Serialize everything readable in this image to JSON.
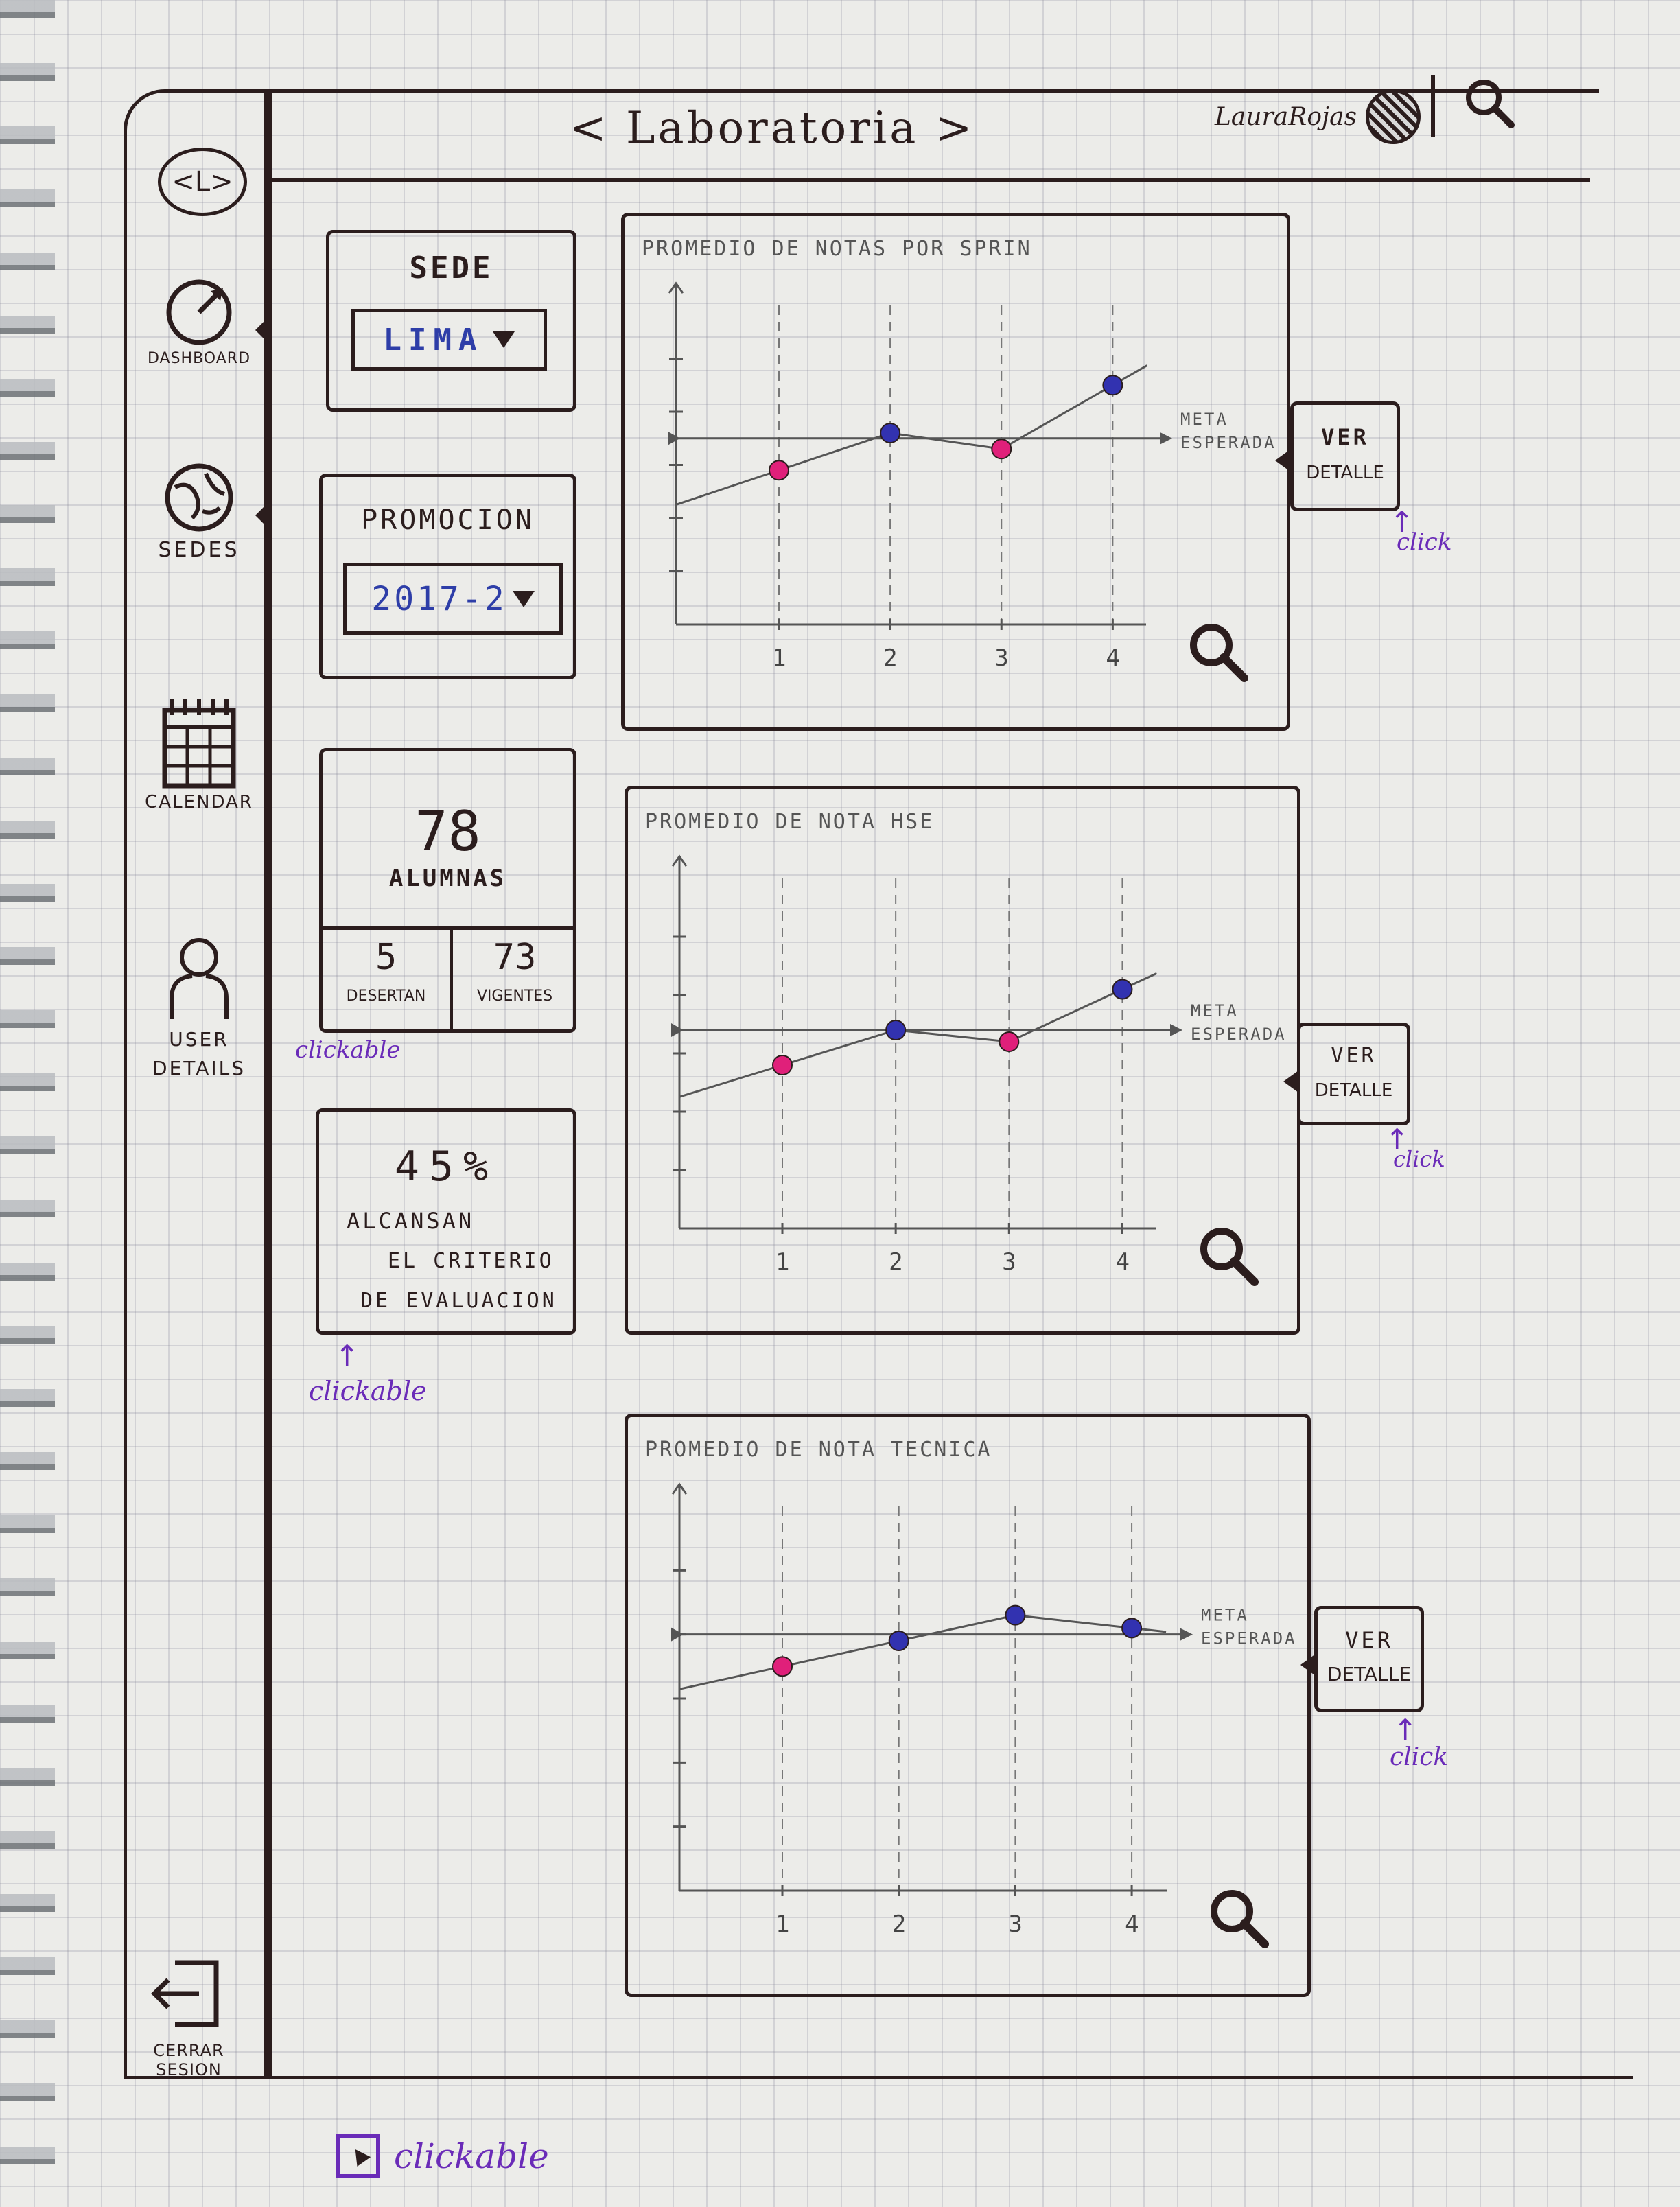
{
  "header": {
    "app_title": "< Laboratoria >",
    "user_name": "LauraRojas"
  },
  "sidebar": {
    "logo_text": "<L>",
    "items": [
      {
        "label": "DASHBOARD"
      },
      {
        "label": "SEDES"
      },
      {
        "label": "CALENDAR"
      },
      {
        "label": "USER DETAILS"
      }
    ],
    "logout_label": "CERRAR SESION"
  },
  "filters": {
    "sede": {
      "title": "SEDE",
      "value": "LIMA"
    },
    "promocion": {
      "title": "PROMOCION",
      "value": "2017-2"
    }
  },
  "stats": {
    "alumnas": {
      "count": "78",
      "label": "ALUMNAS"
    },
    "desertan": {
      "count": "5",
      "label": "DESERTAN"
    },
    "vigentes": {
      "count": "73",
      "label": "VIGENTES"
    },
    "criterio": {
      "percent": "45%",
      "line1": "ALCANSAN",
      "line2": "EL CRITERIO",
      "line3": "DE EVALUACION"
    }
  },
  "annotations": {
    "clickable": "clickable",
    "click": "click",
    "legend_label": "clickable"
  },
  "detail_button_label": [
    "VER",
    "DETALLE"
  ],
  "colors": {
    "ink": "#2b1d1d",
    "pink": "#e0207a",
    "blue": "#3232b0",
    "purple": "#6a2bb8"
  },
  "chart_data": [
    {
      "type": "line",
      "title": "PROMEDIO DE NOTAS POR SPRIN",
      "x": [
        1,
        2,
        3,
        4
      ],
      "values": [
        2.9,
        3.6,
        3.3,
        4.5
      ],
      "point_colors": [
        "pink",
        "blue",
        "pink",
        "blue"
      ],
      "goal_label": [
        "META",
        "ESPERADA"
      ],
      "goal": 3.5,
      "ylim": [
        0,
        6
      ]
    },
    {
      "type": "line",
      "title": "PROMEDIO DE NOTA HSE",
      "x": [
        1,
        2,
        3,
        4
      ],
      "values": [
        2.8,
        3.4,
        3.2,
        4.1
      ],
      "point_colors": [
        "pink",
        "blue",
        "pink",
        "blue"
      ],
      "goal_label": [
        "META",
        "ESPERADA"
      ],
      "goal": 3.4,
      "ylim": [
        0,
        6
      ]
    },
    {
      "type": "line",
      "title": "PROMEDIO DE NOTA TECNICA",
      "x": [
        1,
        2,
        3,
        4
      ],
      "values": [
        3.5,
        3.9,
        4.3,
        4.1
      ],
      "point_colors": [
        "pink",
        "blue",
        "blue",
        "blue"
      ],
      "goal_label": [
        "META",
        "ESPERADA"
      ],
      "goal": 4.0,
      "ylim": [
        0,
        6
      ]
    }
  ]
}
